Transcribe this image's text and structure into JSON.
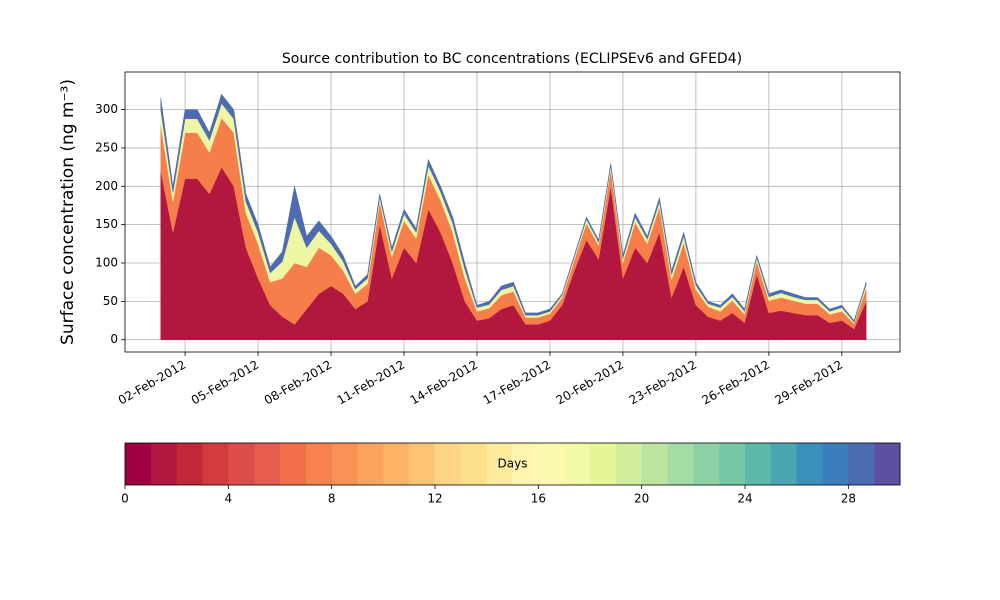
{
  "chart_data": {
    "type": "stacked_area",
    "title": "Source contribution to BC concentrations (ECLIPSEv6 and GFED4)",
    "y_label": "Surface concentration (ng m⁻³)",
    "x": [
      1,
      1.5,
      2,
      2.5,
      3,
      3.5,
      4,
      4.5,
      5,
      5.5,
      6,
      6.5,
      7,
      7.5,
      8,
      8.5,
      9,
      9.5,
      10,
      10.5,
      11,
      11.5,
      12,
      12.5,
      13,
      13.5,
      14,
      14.5,
      15,
      15.5,
      16,
      16.5,
      17,
      17.5,
      18,
      18.5,
      19,
      19.5,
      20,
      20.5,
      21,
      21.5,
      22,
      22.5,
      23,
      23.5,
      24,
      24.5,
      25,
      25.5,
      26,
      26.5,
      27,
      27.5,
      28,
      28.5,
      29,
      29.5,
      30
    ],
    "series": [
      {
        "color": "#b2183f",
        "values": [
          220,
          140,
          210,
          210,
          190,
          225,
          200,
          120,
          80,
          45,
          30,
          20,
          40,
          60,
          70,
          60,
          40,
          50,
          150,
          80,
          120,
          100,
          170,
          140,
          100,
          50,
          25,
          28,
          40,
          45,
          20,
          20,
          25,
          45,
          90,
          130,
          105,
          200,
          80,
          120,
          100,
          140,
          55,
          95,
          45,
          30,
          25,
          35,
          22,
          85,
          35,
          38,
          35,
          32,
          32,
          22,
          25,
          14,
          50
        ]
      },
      {
        "color": "#f67e4b",
        "values": [
          60,
          40,
          60,
          60,
          54,
          64,
          70,
          45,
          45,
          30,
          50,
          80,
          55,
          60,
          40,
          30,
          20,
          23,
          30,
          28,
          35,
          32,
          45,
          42,
          40,
          30,
          12,
          13,
          18,
          18,
          9,
          9,
          9,
          10,
          14,
          22,
          18,
          22,
          20,
          33,
          25,
          33,
          23,
          32,
          20,
          13,
          12,
          16,
          11,
          17,
          16,
          17,
          16,
          15,
          15,
          11,
          12,
          7,
          17
        ]
      },
      {
        "color": "#eef6a3",
        "values": [
          20,
          12,
          18,
          18,
          16,
          19,
          18,
          15,
          15,
          12,
          22,
          60,
          25,
          22,
          15,
          12,
          6,
          7,
          6,
          7,
          9,
          8,
          12,
          11,
          12,
          12,
          5,
          5,
          7,
          7,
          3,
          3,
          3,
          3,
          4,
          5,
          4,
          5,
          6,
          7,
          6,
          7,
          7,
          8,
          6,
          4,
          5,
          5,
          4,
          5,
          5,
          6,
          5,
          5,
          5,
          4,
          5,
          2,
          5
        ]
      },
      {
        "color": "#4d6cb0",
        "values": [
          15,
          8,
          12,
          12,
          10,
          12,
          12,
          10,
          10,
          8,
          13,
          40,
          15,
          13,
          10,
          8,
          4,
          5,
          4,
          5,
          6,
          5,
          8,
          7,
          8,
          8,
          3,
          4,
          5,
          5,
          3,
          3,
          3,
          2,
          2,
          3,
          3,
          3,
          4,
          5,
          4,
          5,
          5,
          5,
          4,
          3,
          3,
          4,
          3,
          3,
          4,
          4,
          4,
          3,
          3,
          3,
          3,
          2,
          3
        ]
      }
    ],
    "xlim": [
      -0.47,
      31.39
    ],
    "xticks": [
      {
        "value": 2,
        "label": "02-Feb-2012"
      },
      {
        "value": 5,
        "label": "05-Feb-2012"
      },
      {
        "value": 8,
        "label": "08-Feb-2012"
      },
      {
        "value": 11,
        "label": "11-Feb-2012"
      },
      {
        "value": 14,
        "label": "14-Feb-2012"
      },
      {
        "value": 17,
        "label": "17-Feb-2012"
      },
      {
        "value": 20,
        "label": "20-Feb-2012"
      },
      {
        "value": 23,
        "label": "23-Feb-2012"
      },
      {
        "value": 26,
        "label": "26-Feb-2012"
      },
      {
        "value": 29,
        "label": "29-Feb-2012"
      }
    ],
    "ylim": [
      -16,
      349
    ],
    "yticks": [
      0,
      50,
      100,
      150,
      200,
      250,
      300
    ],
    "grid": true,
    "colorbar": {
      "label": "Days",
      "lim": [
        0,
        30
      ],
      "ticks": [
        0,
        4,
        8,
        12,
        16,
        20,
        24,
        28
      ],
      "colors": [
        "#9e0142",
        "#b0173f",
        "#c2283c",
        "#d33c3f",
        "#dd4d4a",
        "#e65d50",
        "#f06e4a",
        "#f7814f",
        "#f99355",
        "#fba45f",
        "#fdb466",
        "#fdc474",
        "#fed383",
        "#fee08b",
        "#feeb9e",
        "#fff5b0",
        "#fbf9b0",
        "#f3faa8",
        "#e6f598",
        "#d2ed9b",
        "#bde59f",
        "#a5dba4",
        "#8ed1a4",
        "#76c7a5",
        "#5fb9a9",
        "#4aa6b2",
        "#3890bb",
        "#3a7ebb",
        "#4a6bb0",
        "#5e4fa2"
      ]
    }
  }
}
